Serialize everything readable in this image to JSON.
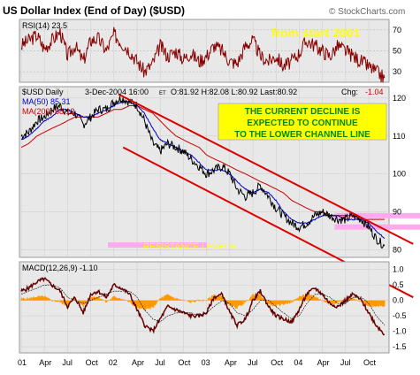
{
  "header": {
    "title": "US Dollar Index (End of Day) ($USD)",
    "copyright": "© StockCharts.com"
  },
  "rsi": {
    "label": "RSI(14) 23.5",
    "ticks": [
      "70",
      "50",
      "30"
    ],
    "annotation": "from start 2001"
  },
  "price": {
    "label": "$USD Daily",
    "date": "3-Dec-2004 16:00",
    "et": "ET",
    "ohlc": "O:81.92 H:82.08 L:80.92 Last:80.92",
    "chg_label": "Chg:",
    "chg_value": "-1.04",
    "ma50": "MA(50) 85.31",
    "ma200": "MA(200) 88.12",
    "note_lines": [
      "THE CURRENT DECLINE IS",
      "EXPECTED TO CONTINUE",
      "TO THE LOWER CHANNEL LINE"
    ],
    "resistance_label": "RESISTANCE LEVELS",
    "ticks": [
      "120",
      "110",
      "100",
      "90",
      "80"
    ]
  },
  "macd": {
    "label": "MACD(12,26,9) -1.10",
    "ticks": [
      "1.0",
      "0.5",
      "0.0",
      "-0.5",
      "-1.0",
      "-1.5"
    ]
  },
  "xaxis": {
    "ticks": [
      "01",
      "Apr",
      "Jul",
      "Oct",
      "02",
      "Apr",
      "Jul",
      "Oct",
      "03",
      "Apr",
      "Jul",
      "Oct",
      "04",
      "Apr",
      "Jul",
      "Oct"
    ]
  },
  "colors": {
    "background": "#ffffff",
    "panel": "#e8e8e8",
    "price_line": "#000000",
    "ma50": "#0000cc",
    "ma200": "#cc0000",
    "channel": "#dd0000",
    "note_bg": "#ffff00",
    "note_text": "#008800",
    "rsi_line": "#880000",
    "macd_hist": "#ff9900",
    "resistance": "#ffaaee",
    "title_text": "#ffff00"
  },
  "chart_data": {
    "type": "line",
    "x_range": [
      "2001-01",
      "2004-12"
    ],
    "price_range": [
      78,
      123
    ],
    "price_series": {
      "x": [
        2001.0,
        2001.08,
        2001.17,
        2001.25,
        2001.33,
        2001.42,
        2001.5,
        2001.58,
        2001.67,
        2001.75,
        2001.83,
        2001.92,
        2002.0,
        2002.08,
        2002.17,
        2002.25,
        2002.33,
        2002.42,
        2002.5,
        2002.58,
        2002.67,
        2002.75,
        2002.83,
        2002.92,
        2003.0,
        2003.08,
        2003.17,
        2003.25,
        2003.33,
        2003.42,
        2003.5,
        2003.58,
        2003.67,
        2003.75,
        2003.83,
        2003.92,
        2004.0,
        2004.08,
        2004.17,
        2004.25,
        2004.33,
        2004.42,
        2004.5,
        2004.58,
        2004.67,
        2004.75,
        2004.83,
        2004.92
      ],
      "values": [
        110,
        111,
        114,
        115,
        117,
        118,
        116,
        116,
        113,
        115,
        117,
        117,
        119,
        120,
        119,
        118,
        114,
        108,
        106,
        108,
        107,
        106,
        104,
        102,
        100,
        101,
        102,
        100,
        96,
        94,
        95,
        97,
        94,
        91,
        89,
        87,
        86,
        87,
        89,
        90,
        89,
        88,
        88,
        89,
        88,
        86,
        83,
        81
      ]
    },
    "ma50_values": [
      109,
      110,
      112,
      114,
      115,
      117,
      117,
      116,
      115,
      115,
      116,
      117,
      118,
      119,
      119,
      118,
      116,
      112,
      109,
      108,
      107,
      106,
      105,
      103,
      101,
      101,
      101,
      100,
      98,
      96,
      95,
      96,
      95,
      93,
      90,
      88,
      87,
      87,
      88,
      89,
      89,
      89,
      88,
      88,
      88,
      87,
      85,
      83
    ],
    "ma200_values": [
      107,
      108,
      110,
      111,
      112,
      113,
      114,
      115,
      115,
      115,
      115,
      116,
      117,
      117,
      118,
      118,
      117,
      116,
      114,
      112,
      110,
      109,
      108,
      107,
      105,
      104,
      103,
      102,
      101,
      100,
      99,
      98,
      97,
      96,
      95,
      93,
      92,
      91,
      90,
      90,
      89,
      89,
      89,
      89,
      88,
      88,
      88,
      88
    ],
    "channel_upper": {
      "x": [
        2002.05,
        2004.95
      ],
      "y": [
        121,
        85
      ]
    },
    "channel_lower": {
      "x": [
        2002.1,
        2004.95
      ],
      "y": [
        107,
        71
      ]
    },
    "resistance_levels": [
      89,
      86
    ],
    "resistance_level_earlier": 80,
    "rsi_range": [
      20,
      80
    ],
    "rsi_values": [
      55,
      60,
      65,
      52,
      60,
      68,
      45,
      55,
      40,
      60,
      62,
      50,
      66,
      58,
      50,
      40,
      30,
      38,
      55,
      45,
      50,
      42,
      48,
      40,
      45,
      55,
      50,
      40,
      38,
      55,
      60,
      45,
      40,
      45,
      35,
      40,
      48,
      60,
      55,
      50,
      45,
      55,
      50,
      45,
      40,
      35,
      30,
      24
    ],
    "macd_range": [
      -1.5,
      1.0
    ],
    "macd_values": [
      0.3,
      0.4,
      0.6,
      0.7,
      0.5,
      0.3,
      -0.2,
      0.1,
      -0.4,
      0.2,
      0.3,
      0.1,
      0.5,
      0.4,
      0.2,
      -0.3,
      -0.8,
      -1.0,
      -0.6,
      -0.2,
      -0.3,
      -0.4,
      -0.5,
      -0.5,
      -0.4,
      0.1,
      0.2,
      -0.4,
      -0.8,
      -0.6,
      0.0,
      0.3,
      -0.2,
      -0.5,
      -0.6,
      -0.7,
      -0.3,
      0.2,
      0.4,
      0.2,
      -0.1,
      -0.2,
      0.0,
      0.2,
      0.0,
      -0.4,
      -0.8,
      -1.1
    ],
    "macd_signal": [
      0.2,
      0.3,
      0.4,
      0.5,
      0.5,
      0.4,
      0.1,
      0.0,
      -0.1,
      0.0,
      0.1,
      0.2,
      0.3,
      0.3,
      0.3,
      0.1,
      -0.3,
      -0.6,
      -0.7,
      -0.5,
      -0.4,
      -0.4,
      -0.4,
      -0.5,
      -0.4,
      -0.2,
      0.0,
      -0.1,
      -0.4,
      -0.5,
      -0.3,
      0.0,
      0.0,
      -0.2,
      -0.4,
      -0.6,
      -0.5,
      -0.1,
      0.2,
      0.2,
      0.1,
      -0.1,
      -0.1,
      0.1,
      0.1,
      -0.1,
      -0.5,
      -0.8
    ]
  }
}
